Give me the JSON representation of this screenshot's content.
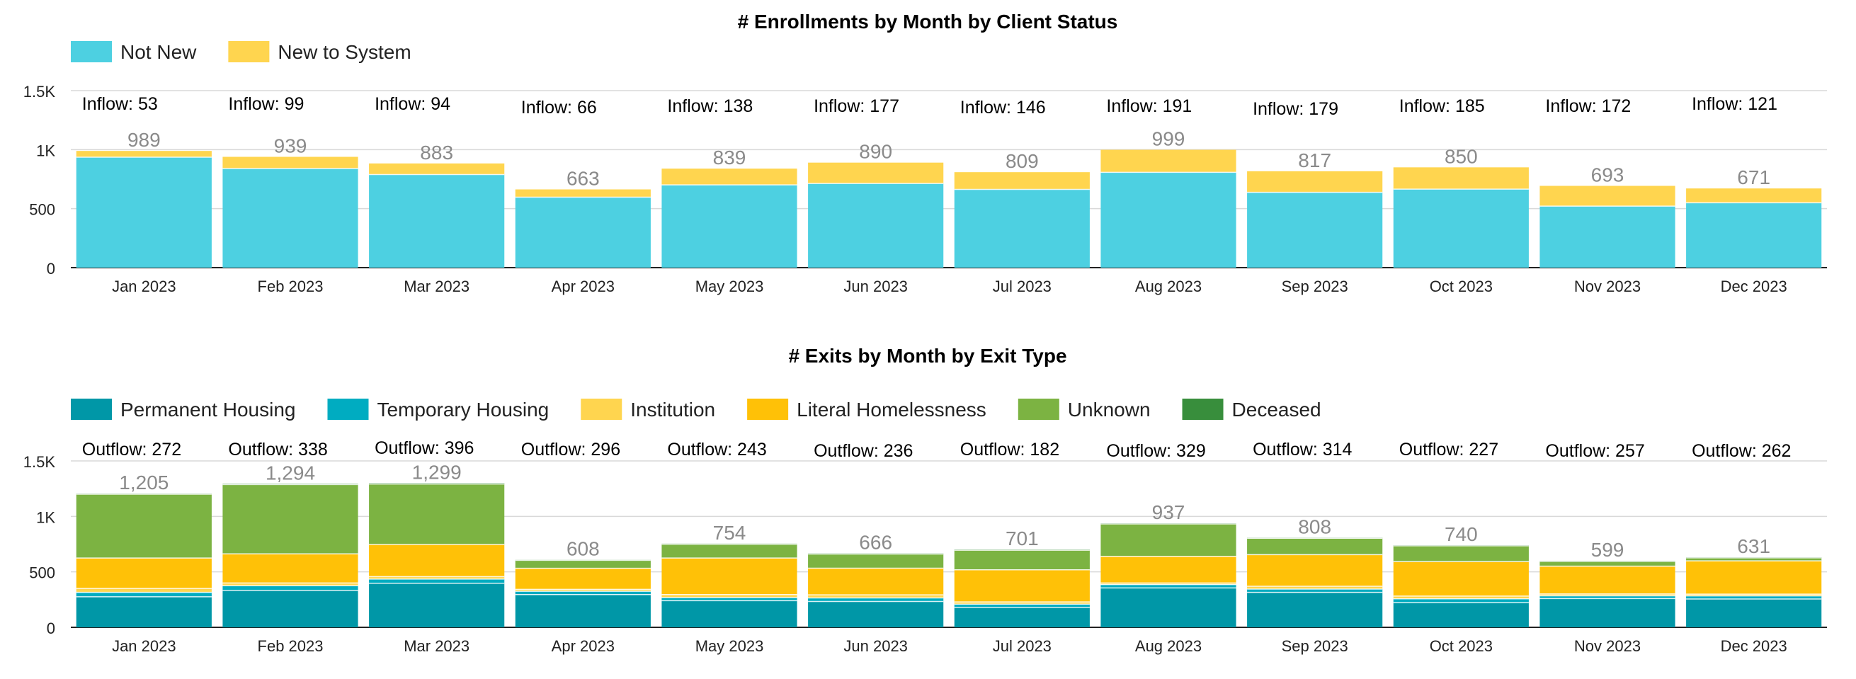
{
  "chart_data": [
    {
      "type": "bar",
      "stacked": true,
      "title": "# Enrollments by Month by Client Status",
      "xlabel": "",
      "ylabel": "",
      "legend_position": "top-left",
      "grid": true,
      "ylim": [
        0,
        1500
      ],
      "yticks": [
        {
          "value": 0,
          "label": "0"
        },
        {
          "value": 500,
          "label": "500"
        },
        {
          "value": 1000,
          "label": "1K"
        },
        {
          "value": 1500,
          "label": "1.5K"
        }
      ],
      "categories": [
        "Jan 2023",
        "Feb 2023",
        "Mar 2023",
        "Apr 2023",
        "May 2023",
        "Jun 2023",
        "Jul 2023",
        "Aug 2023",
        "Sep 2023",
        "Oct 2023",
        "Nov 2023",
        "Dec 2023"
      ],
      "series": [
        {
          "name": "Not New",
          "color": "#4DD0E1",
          "values": [
            936,
            840,
            789,
            597,
            701,
            713,
            663,
            808,
            638,
            665,
            521,
            550
          ]
        },
        {
          "name": "New to System",
          "color": "#FFD54F",
          "values": [
            53,
            99,
            94,
            66,
            138,
            177,
            146,
            191,
            179,
            185,
            172,
            121
          ]
        }
      ],
      "totals": [
        "989",
        "939",
        "883",
        "663",
        "839",
        "890",
        "809",
        "999",
        "817",
        "850",
        "693",
        "671"
      ],
      "annotations": [
        "Inflow: 53",
        "Inflow: 99",
        "Inflow: 94",
        "Inflow: 66",
        "Inflow: 138",
        "Inflow: 177",
        "Inflow: 146",
        "Inflow: 191",
        "Inflow: 179",
        "Inflow: 185",
        "Inflow: 172",
        "Inflow: 121"
      ]
    },
    {
      "type": "bar",
      "stacked": true,
      "title": "# Exits by Month by Exit Type",
      "xlabel": "",
      "ylabel": "",
      "legend_position": "top-left",
      "grid": true,
      "ylim": [
        0,
        1500
      ],
      "yticks": [
        {
          "value": 0,
          "label": "0"
        },
        {
          "value": 500,
          "label": "500"
        },
        {
          "value": 1000,
          "label": "1K"
        },
        {
          "value": 1500,
          "label": "1.5K"
        }
      ],
      "categories": [
        "Jan 2023",
        "Feb 2023",
        "Mar 2023",
        "Apr 2023",
        "May 2023",
        "Jun 2023",
        "Jul 2023",
        "Aug 2023",
        "Sep 2023",
        "Oct 2023",
        "Nov 2023",
        "Dec 2023"
      ],
      "series": [
        {
          "name": "Permanent Housing",
          "color": "#0097A7",
          "values": [
            275,
            333,
            397,
            295,
            240,
            233,
            180,
            355,
            315,
            222,
            259,
            255
          ]
        },
        {
          "name": "Temporary Housing",
          "color": "#00ACC1",
          "values": [
            40,
            42,
            38,
            30,
            28,
            32,
            28,
            30,
            30,
            35,
            25,
            28
          ]
        },
        {
          "name": "Institution",
          "color": "#FFD54F",
          "values": [
            35,
            25,
            22,
            17,
            27,
            28,
            21,
            15,
            25,
            25,
            17,
            16
          ]
        },
        {
          "name": "Literal Homelessness",
          "color": "#FFC107",
          "values": [
            275,
            262,
            290,
            190,
            330,
            240,
            290,
            240,
            285,
            310,
            250,
            300
          ]
        },
        {
          "name": "Unknown",
          "color": "#7CB342",
          "values": [
            575,
            625,
            545,
            72,
            124,
            128,
            176,
            292,
            148,
            143,
            43,
            27
          ]
        },
        {
          "name": "Deceased",
          "color": "#388E3C",
          "values": [
            5,
            7,
            7,
            4,
            5,
            5,
            6,
            5,
            5,
            5,
            5,
            5
          ]
        }
      ],
      "totals": [
        "1,205",
        "1,294",
        "1,299",
        "608",
        "754",
        "666",
        "701",
        "937",
        "808",
        "740",
        "599",
        "631"
      ],
      "annotations": [
        "Outflow: 272",
        "Outflow: 338",
        "Outflow: 396",
        "Outflow: 296",
        "Outflow: 243",
        "Outflow: 236",
        "Outflow: 182",
        "Outflow: 329",
        "Outflow: 314",
        "Outflow: 227",
        "Outflow: 257",
        "Outflow: 262"
      ]
    }
  ]
}
